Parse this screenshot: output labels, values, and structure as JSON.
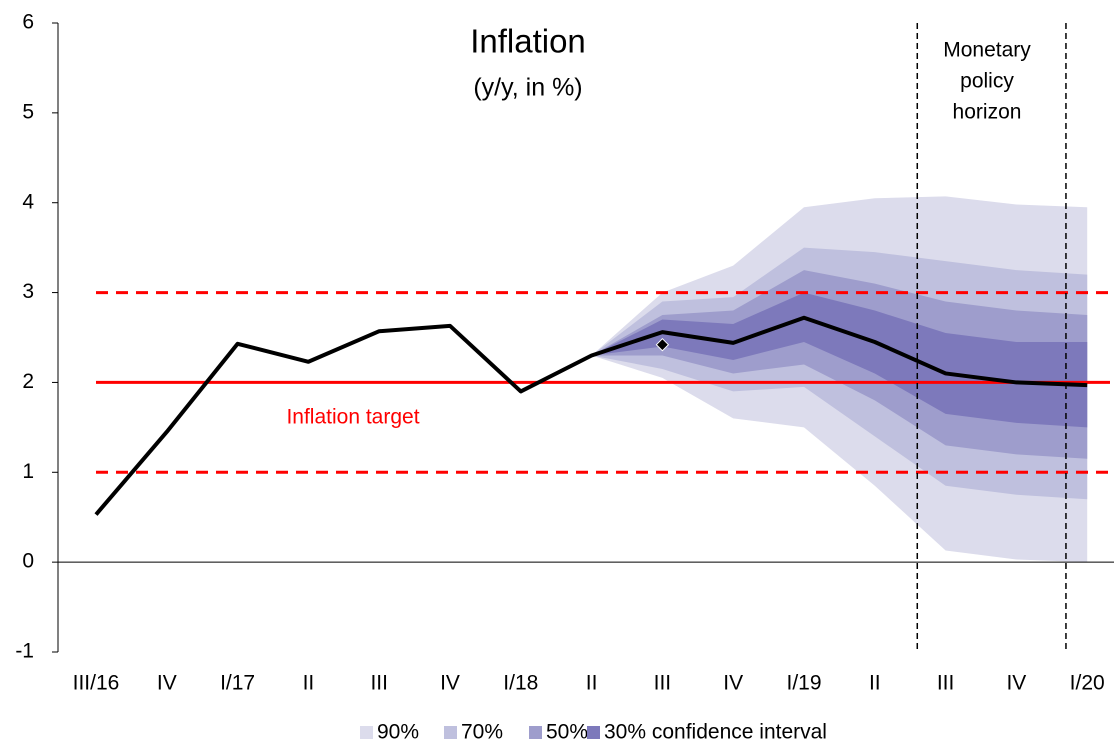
{
  "chart_data": {
    "type": "fan",
    "title": "Inflation",
    "subtitle": "(y/y, in %)",
    "categories": [
      "III/16",
      "IV",
      "I/17",
      "II",
      "III",
      "IV",
      "I/18",
      "II",
      "III",
      "IV",
      "I/19",
      "II",
      "III",
      "IV",
      "I/20"
    ],
    "values": [
      0.53,
      1.45,
      2.43,
      2.23,
      2.57,
      2.63,
      1.9,
      2.3,
      2.56,
      2.44,
      2.72,
      2.45,
      2.1,
      2.0,
      1.97
    ],
    "line_color": "#000000",
    "diamond": [
      null,
      null,
      null,
      null,
      null,
      null,
      null,
      null,
      2.42,
      null,
      null,
      null,
      null,
      null,
      null
    ],
    "bands": [
      {
        "name": "90%",
        "color": "#dcdcec",
        "upper": [
          null,
          null,
          null,
          null,
          null,
          null,
          null,
          2.3,
          3.0,
          3.3,
          3.95,
          4.05,
          4.07,
          3.98,
          3.95
        ],
        "lower": [
          null,
          null,
          null,
          null,
          null,
          null,
          null,
          2.3,
          2.05,
          1.6,
          1.5,
          0.85,
          0.13,
          0.03,
          0.0
        ]
      },
      {
        "name": "70%",
        "color": "#bfc0de",
        "upper": [
          null,
          null,
          null,
          null,
          null,
          null,
          null,
          2.3,
          2.9,
          2.95,
          3.5,
          3.45,
          3.35,
          3.25,
          3.2
        ],
        "lower": [
          null,
          null,
          null,
          null,
          null,
          null,
          null,
          2.3,
          2.15,
          1.9,
          1.95,
          1.4,
          0.85,
          0.75,
          0.7
        ]
      },
      {
        "name": "50%",
        "color": "#9e9dcc",
        "upper": [
          null,
          null,
          null,
          null,
          null,
          null,
          null,
          2.3,
          2.75,
          2.8,
          3.25,
          3.1,
          2.9,
          2.8,
          2.75
        ],
        "lower": [
          null,
          null,
          null,
          null,
          null,
          null,
          null,
          2.3,
          2.3,
          2.1,
          2.2,
          1.8,
          1.3,
          1.2,
          1.15
        ]
      },
      {
        "name": "30% confidence interval",
        "color": "#7d79bb",
        "upper": [
          null,
          null,
          null,
          null,
          null,
          null,
          null,
          2.3,
          2.7,
          2.65,
          3.0,
          2.8,
          2.55,
          2.45,
          2.45
        ],
        "lower": [
          null,
          null,
          null,
          null,
          null,
          null,
          null,
          2.3,
          2.4,
          2.25,
          2.45,
          2.1,
          1.65,
          1.55,
          1.5
        ]
      }
    ],
    "target": {
      "label": "Inflation target",
      "value": 2,
      "band": [
        1,
        3
      ],
      "color": "#ff0000"
    },
    "horizon": {
      "label": [
        "Monetary",
        "policy",
        "horizon"
      ],
      "positions": [
        11.6,
        13.7
      ]
    },
    "ylim": [
      -1,
      6
    ],
    "yticks": [
      -1,
      0,
      1,
      2,
      3,
      4,
      5,
      6
    ],
    "grid": false
  }
}
